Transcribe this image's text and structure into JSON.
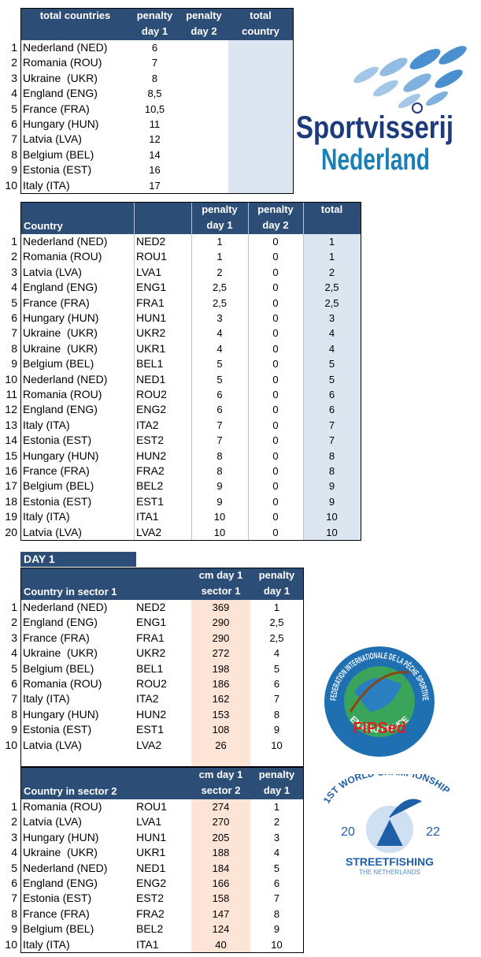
{
  "totals": {
    "header": [
      [
        "total countries"
      ],
      [
        "penalty",
        "day 1"
      ],
      [
        "penalty",
        "day 2"
      ],
      [
        "total",
        "country"
      ]
    ],
    "rows": [
      [
        "1",
        "Nederland (NED)",
        "6"
      ],
      [
        "2",
        "Romania (ROU)",
        "7"
      ],
      [
        "3",
        "Ukraine  (UKR)",
        "8"
      ],
      [
        "4",
        "England (ENG)",
        "8,5"
      ],
      [
        "5",
        "France (FRA)",
        "10,5"
      ],
      [
        "6",
        "Hungary (HUN)",
        "11"
      ],
      [
        "7",
        "Latvia (LVA)",
        "12"
      ],
      [
        "8",
        "Belgium (BEL)",
        "14"
      ],
      [
        "9",
        "Estonia (EST)",
        "16"
      ],
      [
        "10",
        "Italy (ITA)",
        "17"
      ]
    ]
  },
  "teams": {
    "header": [
      [
        "Country"
      ],
      [],
      [
        "penalty",
        "day 1"
      ],
      [
        "penalty",
        "day 2"
      ],
      [
        "total"
      ]
    ],
    "rows": [
      [
        "1",
        "Nederland (NED)",
        "NED2",
        "1",
        "0",
        "1"
      ],
      [
        "2",
        "Romania (ROU)",
        "ROU1",
        "1",
        "0",
        "1"
      ],
      [
        "3",
        "Latvia (LVA)",
        "LVA1",
        "2",
        "0",
        "2"
      ],
      [
        "4",
        "England (ENG)",
        "ENG1",
        "2,5",
        "0",
        "2,5"
      ],
      [
        "5",
        "France (FRA)",
        "FRA1",
        "2,5",
        "0",
        "2,5"
      ],
      [
        "6",
        "Hungary (HUN)",
        "HUN1",
        "3",
        "0",
        "3"
      ],
      [
        "7",
        "Ukraine  (UKR)",
        "UKR2",
        "4",
        "0",
        "4"
      ],
      [
        "8",
        "Ukraine  (UKR)",
        "UKR1",
        "4",
        "0",
        "4"
      ],
      [
        "9",
        "Belgium (BEL)",
        "BEL1",
        "5",
        "0",
        "5"
      ],
      [
        "10",
        "Nederland (NED)",
        "NED1",
        "5",
        "0",
        "5"
      ],
      [
        "11",
        "Romania (ROU)",
        "ROU2",
        "6",
        "0",
        "6"
      ],
      [
        "12",
        "England (ENG)",
        "ENG2",
        "6",
        "0",
        "6"
      ],
      [
        "13",
        "Italy (ITA)",
        "ITA2",
        "7",
        "0",
        "7"
      ],
      [
        "14",
        "Estonia (EST)",
        "EST2",
        "7",
        "0",
        "7"
      ],
      [
        "15",
        "Hungary (HUN)",
        "HUN2",
        "8",
        "0",
        "8"
      ],
      [
        "16",
        "France (FRA)",
        "FRA2",
        "8",
        "0",
        "8"
      ],
      [
        "17",
        "Belgium (BEL)",
        "BEL2",
        "9",
        "0",
        "9"
      ],
      [
        "18",
        "Estonia (EST)",
        "EST1",
        "9",
        "0",
        "9"
      ],
      [
        "19",
        "Italy (ITA)",
        "ITA1",
        "10",
        "0",
        "10"
      ],
      [
        "20",
        "Latvia (LVA)",
        "LVA2",
        "10",
        "0",
        "10"
      ]
    ]
  },
  "day1": {
    "label": "DAY 1",
    "sectors": [
      {
        "header": [
          [
            "Country in sector 1"
          ],
          [],
          [
            "cm day 1",
            "sector 1"
          ],
          [
            "penalty",
            "day 1"
          ]
        ],
        "rows": [
          [
            "1",
            "Nederland (NED)",
            "NED2",
            "369",
            "1"
          ],
          [
            "2",
            "England (ENG)",
            "ENG1",
            "290",
            "2,5"
          ],
          [
            "3",
            "France (FRA)",
            "FRA1",
            "290",
            "2,5"
          ],
          [
            "4",
            "Ukraine  (UKR)",
            "UKR2",
            "272",
            "4"
          ],
          [
            "5",
            "Belgium (BEL)",
            "BEL1",
            "198",
            "5"
          ],
          [
            "6",
            "Romania (ROU)",
            "ROU2",
            "186",
            "6"
          ],
          [
            "7",
            "Italy (ITA)",
            "ITA2",
            "162",
            "7"
          ],
          [
            "8",
            "Hungary (HUN)",
            "HUN2",
            "153",
            "8"
          ],
          [
            "9",
            "Estonia (EST)",
            "EST1",
            "108",
            "9"
          ],
          [
            "10",
            "Latvia (LVA)",
            "LVA2",
            "26",
            "10"
          ]
        ]
      },
      {
        "header": [
          [
            "Country in sector 2"
          ],
          [],
          [
            "cm day 1",
            "sector 2"
          ],
          [
            "penalty",
            "day 1"
          ]
        ],
        "rows": [
          [
            "1",
            "Romania (ROU)",
            "ROU1",
            "274",
            "1"
          ],
          [
            "2",
            "Latvia (LVA)",
            "LVA1",
            "270",
            "2"
          ],
          [
            "3",
            "Hungary (HUN)",
            "HUN1",
            "205",
            "3"
          ],
          [
            "4",
            "Ukraine  (UKR)",
            "UKR1",
            "188",
            "4"
          ],
          [
            "5",
            "Nederland (NED)",
            "NED1",
            "184",
            "5"
          ],
          [
            "6",
            "England (ENG)",
            "ENG2",
            "166",
            "6"
          ],
          [
            "7",
            "Estonia (EST)",
            "EST2",
            "158",
            "7"
          ],
          [
            "8",
            "France (FRA)",
            "FRA2",
            "147",
            "8"
          ],
          [
            "9",
            "Belgium (BEL)",
            "BEL2",
            "124",
            "9"
          ],
          [
            "10",
            "Italy (ITA)",
            "ITA1",
            "40",
            "10"
          ]
        ]
      }
    ]
  },
  "logos": {
    "sportvisserij": [
      "Sportvisserij",
      "Nederland"
    ],
    "fips": {
      "ring_top": "FEDERATION INTERNATIONALE DE LA PÊCHE SPORTIVE",
      "ring_bottom": "EN EAU DOUCE",
      "name": "FIPSed"
    },
    "championship": {
      "title": "1ST WORLD CHAMPIONSHIP",
      "year_left": "20",
      "year_right": "22",
      "event": "STREETFISHING",
      "place": "THE NETHERLANDS"
    }
  }
}
